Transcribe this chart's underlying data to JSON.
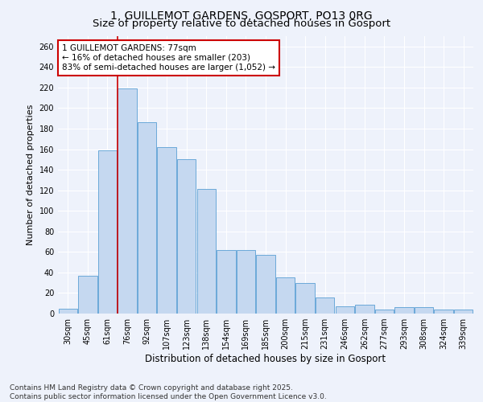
{
  "title": "1, GUILLEMOT GARDENS, GOSPORT, PO13 0RG",
  "subtitle": "Size of property relative to detached houses in Gosport",
  "xlabel": "Distribution of detached houses by size in Gosport",
  "ylabel": "Number of detached properties",
  "categories": [
    "30sqm",
    "45sqm",
    "61sqm",
    "76sqm",
    "92sqm",
    "107sqm",
    "123sqm",
    "138sqm",
    "154sqm",
    "169sqm",
    "185sqm",
    "200sqm",
    "215sqm",
    "231sqm",
    "246sqm",
    "262sqm",
    "277sqm",
    "293sqm",
    "308sqm",
    "324sqm",
    "339sqm"
  ],
  "values": [
    5,
    37,
    159,
    219,
    186,
    162,
    150,
    121,
    62,
    62,
    57,
    35,
    30,
    16,
    7,
    9,
    4,
    6,
    6,
    4,
    4
  ],
  "bar_color": "#c5d8f0",
  "bar_edge_color": "#5a9fd4",
  "vline_x_index": 3,
  "vline_color": "#cc0000",
  "annotation_text": "1 GUILLEMOT GARDENS: 77sqm\n← 16% of detached houses are smaller (203)\n83% of semi-detached houses are larger (1,052) →",
  "annotation_box_color": "#ffffff",
  "annotation_box_edge": "#cc0000",
  "ylim": [
    0,
    270
  ],
  "yticks": [
    0,
    20,
    40,
    60,
    80,
    100,
    120,
    140,
    160,
    180,
    200,
    220,
    240,
    260
  ],
  "background_color": "#eef2fb",
  "grid_color": "#ffffff",
  "footer": "Contains HM Land Registry data © Crown copyright and database right 2025.\nContains public sector information licensed under the Open Government Licence v3.0.",
  "title_fontsize": 10,
  "xlabel_fontsize": 8.5,
  "ylabel_fontsize": 8,
  "tick_fontsize": 7,
  "annotation_fontsize": 7.5,
  "footer_fontsize": 6.5
}
